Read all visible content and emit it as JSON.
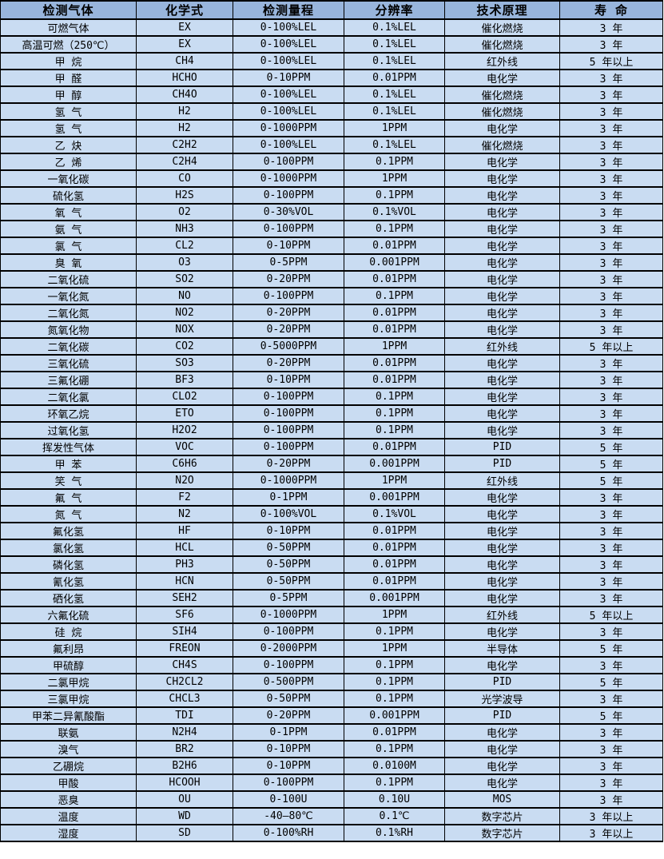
{
  "colors": {
    "header_bg": "#98B5DC",
    "row_bg": "#C9DCF2",
    "border": "#000000"
  },
  "table": {
    "columns": [
      "检测气体",
      "化学式",
      "检测量程",
      "分辨率",
      "技术原理",
      "寿 命"
    ],
    "rows": [
      [
        "可燃气体",
        "EX",
        "0-100%LEL",
        "0.1%LEL",
        "催化燃烧",
        "3 年"
      ],
      [
        "高温可燃（250℃）",
        "EX",
        "0-100%LEL",
        "0.1%LEL",
        "催化燃烧",
        "3 年"
      ],
      [
        "甲 烷",
        "CH4",
        "0-100%LEL",
        "0.1%LEL",
        "红外线",
        "5 年以上"
      ],
      [
        "甲 醛",
        "HCHO",
        "0-10PPM",
        "0.01PPM",
        "电化学",
        "3 年"
      ],
      [
        "甲 醇",
        "CH4O",
        "0-100%LEL",
        "0.1%LEL",
        "催化燃烧",
        "3 年"
      ],
      [
        "氢 气",
        "H2",
        "0-100%LEL",
        "0.1%LEL",
        "催化燃烧",
        "3 年"
      ],
      [
        "氢 气",
        "H2",
        "0-1000PPM",
        "1PPM",
        "电化学",
        "3 年"
      ],
      [
        "乙 炔",
        "C2H2",
        "0-100%LEL",
        "0.1%LEL",
        "催化燃烧",
        "3 年"
      ],
      [
        "乙 烯",
        "C2H4",
        "0-100PPM",
        "0.1PPM",
        "电化学",
        "3 年"
      ],
      [
        "一氧化碳",
        "CO",
        "0-1000PPM",
        "1PPM",
        "电化学",
        "3 年"
      ],
      [
        "硫化氢",
        "H2S",
        "0-100PPM",
        "0.1PPM",
        "电化学",
        "3 年"
      ],
      [
        "氧 气",
        "O2",
        "0-30%VOL",
        "0.1%VOL",
        "电化学",
        "3 年"
      ],
      [
        "氨 气",
        "NH3",
        "0-100PPM",
        "0.1PPM",
        "电化学",
        "3 年"
      ],
      [
        "氯 气",
        "CL2",
        "0-10PPM",
        "0.01PPM",
        "电化学",
        "3 年"
      ],
      [
        "臭 氧",
        "O3",
        "0-5PPM",
        "0.001PPM",
        "电化学",
        "3 年"
      ],
      [
        "二氧化硫",
        "SO2",
        "0-20PPM",
        "0.01PPM",
        "电化学",
        "3 年"
      ],
      [
        "一氧化氮",
        "NO",
        "0-100PPM",
        "0.1PPM",
        "电化学",
        "3 年"
      ],
      [
        "二氧化氮",
        "NO2",
        "0-20PPM",
        "0.01PPM",
        "电化学",
        "3 年"
      ],
      [
        "氮氧化物",
        "NOX",
        "0-20PPM",
        "0.01PPM",
        "电化学",
        "3 年"
      ],
      [
        "二氧化碳",
        "CO2",
        "0-5000PPM",
        "1PPM",
        "红外线",
        "5 年以上"
      ],
      [
        "三氧化硫",
        "SO3",
        "0-20PPM",
        "0.01PPM",
        "电化学",
        "3 年"
      ],
      [
        "三氟化硼",
        "BF3",
        "0-10PPM",
        "0.01PPM",
        "电化学",
        "3 年"
      ],
      [
        "二氧化氯",
        "CLO2",
        "0-100PPM",
        "0.1PPM",
        "电化学",
        "3 年"
      ],
      [
        "环氧乙烷",
        "ETO",
        "0-100PPM",
        "0.1PPM",
        "电化学",
        "3 年"
      ],
      [
        "过氧化氢",
        "H2O2",
        "0-100PPM",
        "0.1PPM",
        "电化学",
        "3 年"
      ],
      [
        "挥发性气体",
        "VOC",
        "0-100PPM",
        "0.01PPM",
        "PID",
        "5 年"
      ],
      [
        "甲 苯",
        "C6H6",
        "0-20PPM",
        "0.001PPM",
        "PID",
        "5 年"
      ],
      [
        "笑 气",
        "N2O",
        "0-1000PPM",
        "1PPM",
        "红外线",
        "5 年"
      ],
      [
        "氟 气",
        "F2",
        "0-1PPM",
        "0.001PPM",
        "电化学",
        "3 年"
      ],
      [
        "氮 气",
        "N2",
        "0-100%VOL",
        "0.1%VOL",
        "电化学",
        "3 年"
      ],
      [
        "氟化氢",
        "HF",
        "0-10PPM",
        "0.01PPM",
        "电化学",
        "3 年"
      ],
      [
        "氯化氢",
        "HCL",
        "0-50PPM",
        "0.01PPM",
        "电化学",
        "3 年"
      ],
      [
        "磷化氢",
        "PH3",
        "0-50PPM",
        "0.01PPM",
        "电化学",
        "3 年"
      ],
      [
        "氰化氢",
        "HCN",
        "0-50PPM",
        "0.01PPM",
        "电化学",
        "3 年"
      ],
      [
        "硒化氢",
        "SEH2",
        "0-5PPM",
        "0.001PPM",
        "电化学",
        "3 年"
      ],
      [
        "六氟化硫",
        "SF6",
        "0-1000PPM",
        "1PPM",
        "红外线",
        "5 年以上"
      ],
      [
        "硅 烷",
        "SIH4",
        "0-100PPM",
        "0.1PPM",
        "电化学",
        "3 年"
      ],
      [
        "氟利昂",
        "FREON",
        "0-2000PPM",
        "1PPM",
        "半导体",
        "5 年"
      ],
      [
        "甲硫醇",
        "CH4S",
        "0-100PPM",
        "0.1PPM",
        "电化学",
        "3 年"
      ],
      [
        "二氯甲烷",
        "CH2CL2",
        "0-500PPM",
        "0.1PPM",
        "PID",
        "5 年"
      ],
      [
        "三氯甲烷",
        "CHCL3",
        "0-50PPM",
        "0.1PPM",
        "光学波导",
        "3 年"
      ],
      [
        "甲苯二异氰酸酯",
        "TDI",
        "0-20PPM",
        "0.001PPM",
        "PID",
        "5 年"
      ],
      [
        "联氨",
        "N2H4",
        "0-1PPM",
        "0.01PPM",
        "电化学",
        "3 年"
      ],
      [
        "溴气",
        "BR2",
        "0-10PPM",
        "0.1PPM",
        "电化学",
        "3 年"
      ],
      [
        "乙硼烷",
        "B2H6",
        "0-10PPM",
        "0.0100M",
        "电化学",
        "3 年"
      ],
      [
        "甲酸",
        "HCOOH",
        "0-100PPM",
        "0.1PPM",
        "电化学",
        "3 年"
      ],
      [
        "恶臭",
        "OU",
        "0-100U",
        "0.10U",
        "MOS",
        "3 年"
      ],
      [
        "温度",
        "WD",
        "-40—80℃",
        "0.1℃",
        "数字芯片",
        "3 年以上"
      ],
      [
        "湿度",
        "SD",
        "0-100%RH",
        "0.1%RH",
        "数字芯片",
        "3 年以上"
      ]
    ]
  }
}
